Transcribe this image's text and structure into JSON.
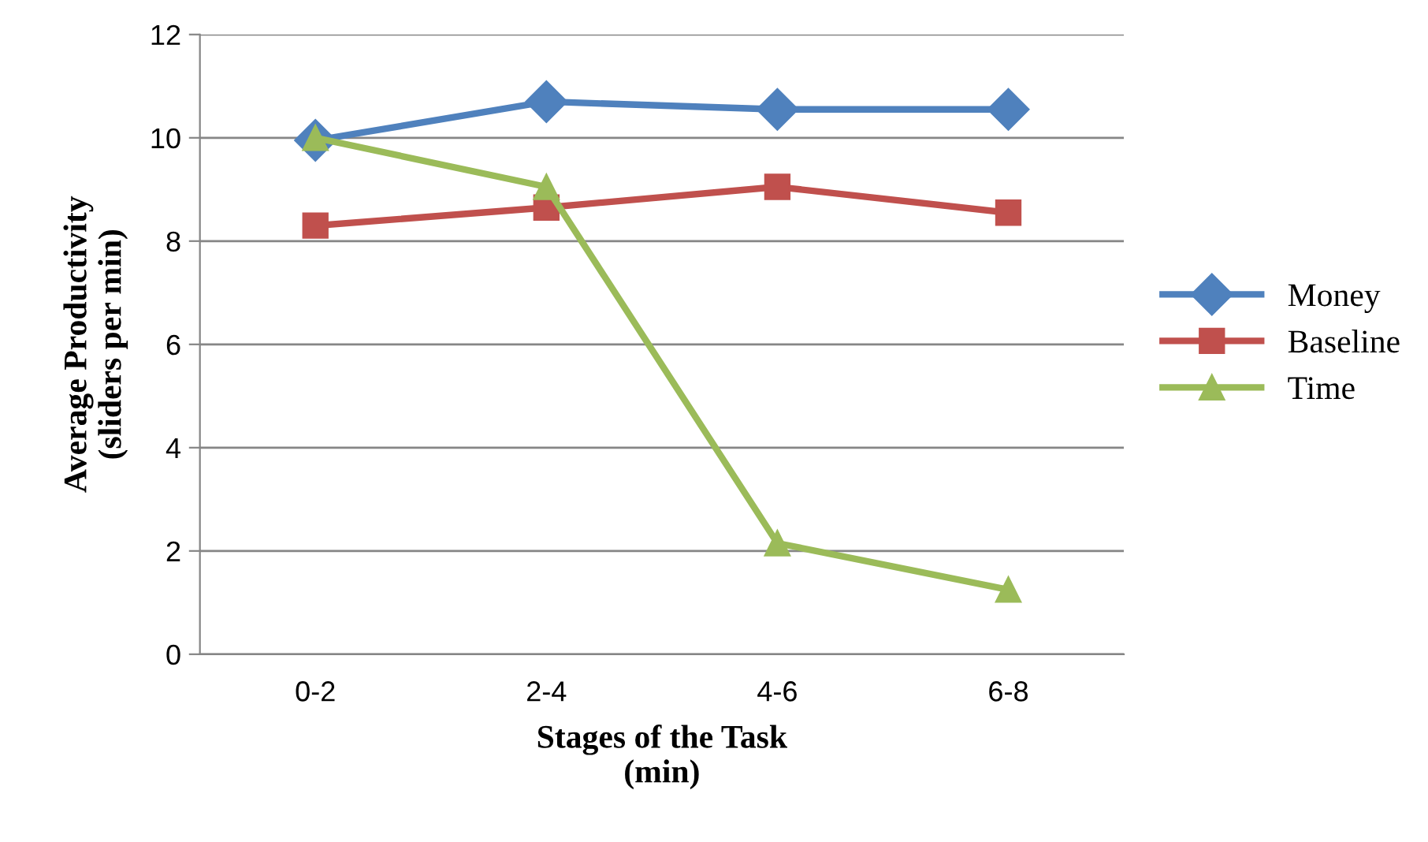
{
  "chart_data": {
    "type": "line",
    "xlabel": "Stages of the Task\n(min)",
    "ylabel": "Average Productivity\n(sliders per min)",
    "categories": [
      "0-2",
      "2-4",
      "4-6",
      "6-8"
    ],
    "series": [
      {
        "name": "Money",
        "color": "#4f81bd",
        "marker": "diamond",
        "values": [
          9.95,
          10.7,
          10.55,
          10.55
        ]
      },
      {
        "name": "Baseline",
        "color": "#c0504d",
        "marker": "square",
        "values": [
          8.3,
          8.65,
          9.05,
          8.55
        ]
      },
      {
        "name": "Time",
        "color": "#9bbb59",
        "marker": "triangle",
        "values": [
          10.0,
          9.05,
          2.15,
          1.25
        ]
      }
    ],
    "ylim": [
      0,
      12
    ],
    "yticks": [
      0,
      2,
      4,
      6,
      8,
      10,
      12
    ],
    "grid": "y",
    "legend": "right",
    "line_style": "solid"
  }
}
